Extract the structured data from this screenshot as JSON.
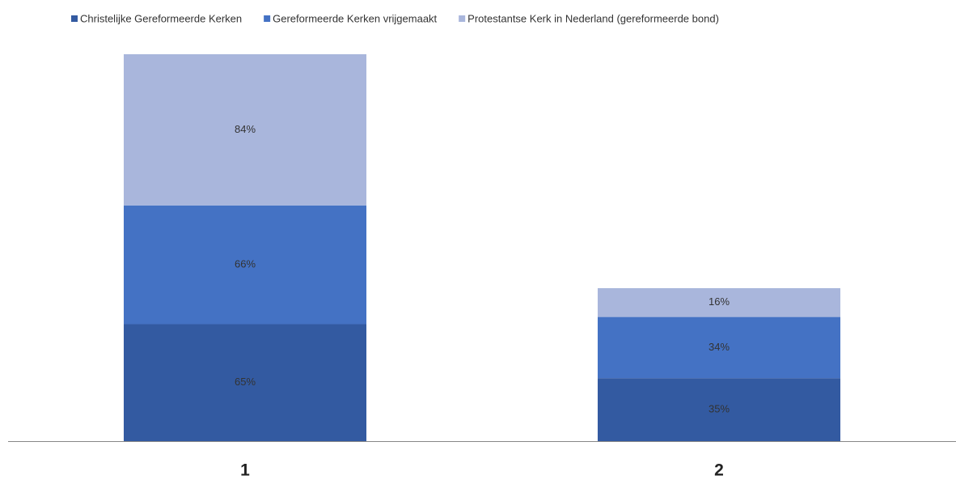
{
  "chart_data": {
    "type": "stacked_bar",
    "categories": [
      "1",
      "2"
    ],
    "series": [
      {
        "name": "Christelijke Gereformeerde Kerken",
        "color": "#335aa1",
        "values": [
          65,
          35
        ],
        "value_labels": [
          "65%",
          "35%"
        ]
      },
      {
        "name": "Gereformeerde Kerken vrijgemaakt",
        "color": "#4472c4",
        "values": [
          66,
          34
        ],
        "value_labels": [
          "66%",
          "34%"
        ]
      },
      {
        "name": "Protestantse Kerk in Nederland (gereformeerde bond)",
        "color": "#a9b6dc",
        "values": [
          84,
          16
        ],
        "value_labels": [
          "84%",
          "16%"
        ]
      }
    ],
    "legend": "top"
  }
}
